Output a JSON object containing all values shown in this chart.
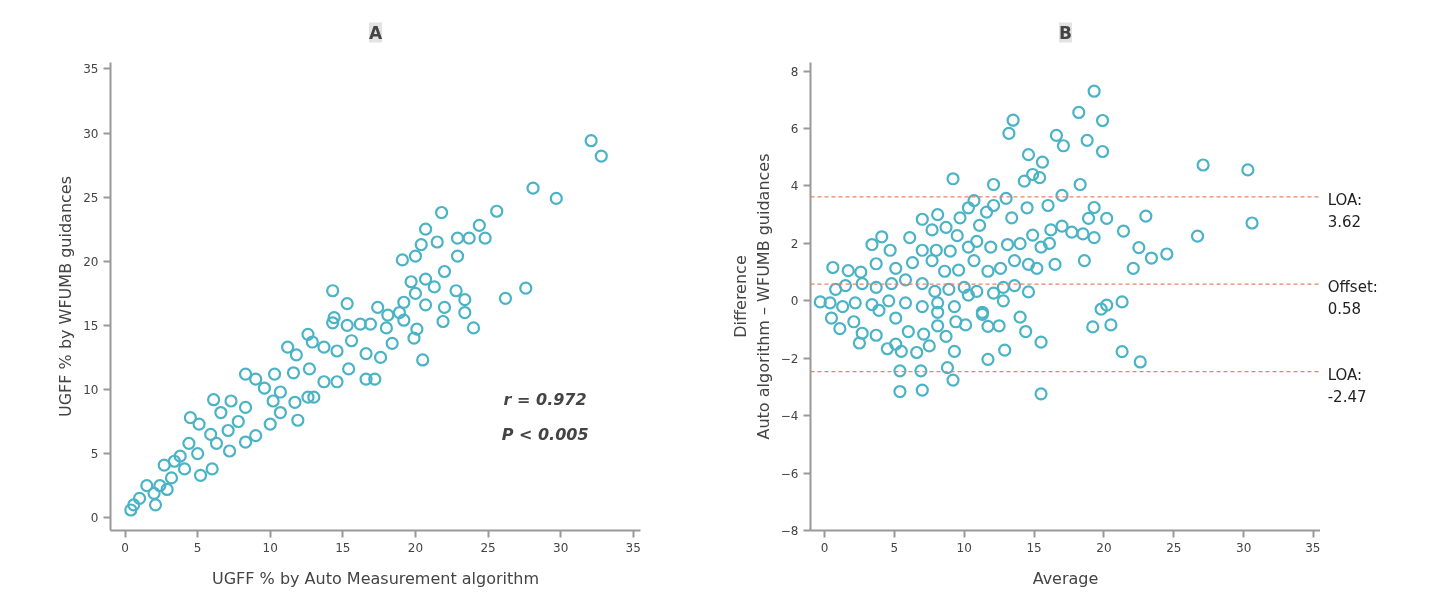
{
  "chart_data": [
    {
      "type": "scatter",
      "title": "A",
      "xlabel": "UGFF % by Auto Measurement algorithm",
      "ylabel": "UGFF % by WFUMB guidances",
      "xlim": [
        -1,
        35.5
      ],
      "ylim": [
        -1,
        35.5
      ],
      "xticks": [
        0,
        5,
        10,
        15,
        20,
        25,
        30,
        35
      ],
      "yticks": [
        0,
        5,
        10,
        15,
        20,
        25,
        30,
        35
      ],
      "marker": "circle",
      "annotations": [
        "r = 0.972",
        "P < 0.005"
      ],
      "series": [
        {
          "color": "#4ab3c6",
          "x": [
            32.1,
            32.8,
            28.1,
            29.7,
            21.8,
            25.6,
            20.7,
            24.4,
            21.5,
            22.9,
            23.7,
            24.8,
            20.4,
            20.0,
            19.1,
            22.9,
            22.0,
            19.7,
            20.7,
            21.3,
            20.0,
            22.8,
            27.6,
            26.2,
            23.4,
            19.2,
            20.7,
            22.0,
            23.4,
            21.9,
            17.4,
            18.9,
            19.2,
            20.1,
            19.9,
            24.0,
            20.5,
            14.3,
            15.3,
            14.3,
            14.4,
            15.3,
            16.2,
            16.9,
            18.1,
            18.0,
            12.6,
            11.2,
            11.8,
            12.9,
            13.7,
            14.6,
            15.6,
            16.6,
            17.6,
            18.4,
            15.4,
            16.6,
            17.2,
            14.6,
            13.7,
            12.6,
            13.0,
            11.7,
            11.9,
            12.7,
            11.6,
            10.3,
            8.3,
            9.0,
            9.6,
            10.7,
            10.2,
            10.7,
            10.0,
            9.0,
            8.3,
            7.3,
            6.1,
            6.6,
            7.8,
            7.1,
            8.3,
            7.2,
            4.5,
            5.1,
            5.9,
            6.3,
            4.4,
            5.0,
            6.0,
            5.2,
            3.8,
            4.1,
            2.7,
            3.2,
            2.4,
            1.5,
            2.0,
            2.1,
            1.0,
            0.6,
            0.4,
            2.9,
            3.4
          ],
          "values": [
            29.4,
            28.2,
            25.7,
            24.9,
            23.8,
            23.9,
            22.5,
            22.8,
            21.5,
            21.8,
            21.8,
            21.8,
            21.3,
            20.4,
            20.1,
            20.4,
            19.2,
            18.4,
            18.6,
            18.0,
            17.5,
            17.7,
            17.9,
            17.1,
            17.0,
            16.8,
            16.6,
            16.4,
            16.0,
            15.3,
            16.4,
            16.0,
            15.4,
            14.7,
            14.0,
            14.8,
            12.3,
            17.7,
            16.7,
            15.2,
            15.6,
            15.0,
            15.1,
            15.1,
            15.8,
            14.8,
            14.3,
            13.3,
            12.7,
            13.7,
            13.3,
            13.0,
            13.8,
            12.8,
            12.5,
            13.6,
            11.6,
            10.8,
            10.8,
            10.6,
            10.6,
            9.4,
            9.4,
            9.0,
            7.6,
            11.6,
            11.3,
            11.2,
            11.2,
            10.8,
            10.1,
            9.8,
            9.1,
            8.2,
            7.3,
            6.4,
            8.6,
            9.1,
            9.2,
            8.2,
            7.5,
            6.8,
            5.9,
            5.2,
            7.8,
            7.3,
            6.5,
            5.8,
            5.8,
            5.0,
            3.8,
            3.3,
            4.8,
            3.8,
            4.1,
            3.1,
            2.5,
            2.5,
            1.9,
            1.0,
            1.5,
            1.0,
            0.6,
            2.2,
            4.4
          ]
        }
      ]
    },
    {
      "type": "scatter",
      "title": "B",
      "xlabel": "Average",
      "ylabel": "Difference\nAuto algorithm – WFUMB guidances",
      "xlim": [
        -1,
        35.5
      ],
      "ylim": [
        -8,
        8.3
      ],
      "xticks": [
        0,
        5,
        10,
        15,
        20,
        25,
        30,
        35
      ],
      "yticks": [
        -8,
        -6,
        -4,
        -2,
        0,
        2,
        4,
        6,
        8
      ],
      "marker": "circle",
      "ref_lines": [
        {
          "axis": "y",
          "value": 3.62,
          "label": "LOA: 3.62",
          "color": "#f08060",
          "line_style": "dashed"
        },
        {
          "axis": "y",
          "value": 0.58,
          "label": "Offset: 0.58",
          "color": "#f08060",
          "line_style": "dashed"
        },
        {
          "axis": "y",
          "value": -2.47,
          "label": "LOA: -2.47",
          "color": "#f08060",
          "line_style": "dashed"
        }
      ],
      "series": [
        {
          "color": "#4ab3c6",
          "x": [
            19.3,
            18.2,
            19.9,
            13.5,
            13.2,
            16.6,
            17.1,
            18.8,
            19.9,
            14.6,
            15.6,
            14.9,
            15.4,
            14.3,
            9.2,
            12.1,
            18.3,
            17.0,
            13.0,
            10.7,
            10.3,
            12.1,
            16.0,
            19.3,
            14.5,
            23.0,
            20.2,
            8.1,
            7.0,
            9.7,
            11.1,
            13.4,
            11.6,
            7.7,
            8.7,
            17.0,
            16.2,
            17.7,
            18.9,
            21.4,
            18.5,
            19.3,
            14.9,
            22.5,
            23.4,
            24.5,
            27.1,
            30.3,
            30.6,
            26.7,
            22.1,
            18.6,
            16.5,
            15.2,
            15.5,
            16.1,
            14.6,
            13.6,
            13.1,
            14.0,
            11.9,
            10.9,
            10.3,
            9.5,
            9.0,
            8.0,
            7.0,
            6.1,
            4.1,
            3.4,
            4.7,
            0.6,
            1.7,
            2.6,
            3.7,
            5.1,
            6.3,
            7.7,
            8.6,
            9.6,
            10.7,
            11.7,
            12.6,
            13.6,
            14.6,
            12.8,
            12.1,
            10.9,
            10.0,
            8.9,
            7.9,
            7.0,
            5.8,
            4.8,
            3.7,
            2.7,
            1.5,
            0.8,
            -0.3,
            0.4,
            1.3,
            2.2,
            3.4,
            4.6,
            5.8,
            7.0,
            8.1,
            9.3,
            10.3,
            11.3,
            12.8,
            0.5,
            1.1,
            2.1,
            2.7,
            2.5,
            3.7,
            4.5,
            5.1,
            5.5,
            6.0,
            6.6,
            7.1,
            7.5,
            8.1,
            8.7,
            9.3,
            9.4,
            10.1,
            11.3,
            11.7,
            11.7,
            12.5,
            12.9,
            14.0,
            14.4,
            15.5,
            19.2,
            19.8,
            20.2,
            21.3,
            20.5,
            21.3,
            22.6,
            5.4,
            5.4,
            6.9,
            7.0,
            8.8,
            9.2,
            15.5,
            3.9,
            5.1,
            8.1
          ],
          "values": [
            7.3,
            6.56,
            6.28,
            6.29,
            5.83,
            5.76,
            5.4,
            5.59,
            5.2,
            5.09,
            4.83,
            4.4,
            4.29,
            4.17,
            4.25,
            4.05,
            4.05,
            3.67,
            3.57,
            3.49,
            3.24,
            3.32,
            3.32,
            3.25,
            3.24,
            2.95,
            2.87,
            3.0,
            2.84,
            2.89,
            2.63,
            2.89,
            3.09,
            2.47,
            2.56,
            2.6,
            2.47,
            2.39,
            2.87,
            2.43,
            2.33,
            2.2,
            2.29,
            1.85,
            1.49,
            1.63,
            4.73,
            4.56,
            2.71,
            2.25,
            1.13,
            1.4,
            1.27,
            1.13,
            1.87,
            2.0,
            1.27,
            1.4,
            1.96,
            1.99,
            1.87,
            2.07,
            1.87,
            2.27,
            1.73,
            1.76,
            1.76,
            2.2,
            2.23,
            1.96,
            1.76,
            1.16,
            1.05,
            1.0,
            1.29,
            1.13,
            1.33,
            1.4,
            1.03,
            1.07,
            1.4,
            1.03,
            1.13,
            0.53,
            0.31,
            0.47,
            0.27,
            0.33,
            0.47,
            0.4,
            0.33,
            0.6,
            0.73,
            0.6,
            0.47,
            0.6,
            0.53,
            0.4,
            -0.04,
            -0.07,
            -0.2,
            -0.07,
            -0.13,
            0.0,
            -0.07,
            -0.2,
            -0.07,
            -0.2,
            0.2,
            -0.4,
            0.0,
            -0.6,
            -0.97,
            -0.73,
            -1.13,
            -1.47,
            -1.2,
            -1.67,
            -1.51,
            -1.76,
            -1.07,
            -1.8,
            -1.16,
            -1.57,
            -0.87,
            -1.24,
            -1.76,
            -0.73,
            -0.84,
            -0.47,
            -0.89,
            -2.04,
            -0.87,
            -1.72,
            -0.57,
            -1.07,
            -1.44,
            -0.91,
            -0.29,
            -0.15,
            -0.04,
            -0.84,
            -1.77,
            -2.13,
            -2.44,
            -3.16,
            -2.44,
            -3.11,
            -2.33,
            -2.76,
            -3.24,
            -0.33,
            -0.6,
            -0.4
          ]
        }
      ]
    }
  ]
}
